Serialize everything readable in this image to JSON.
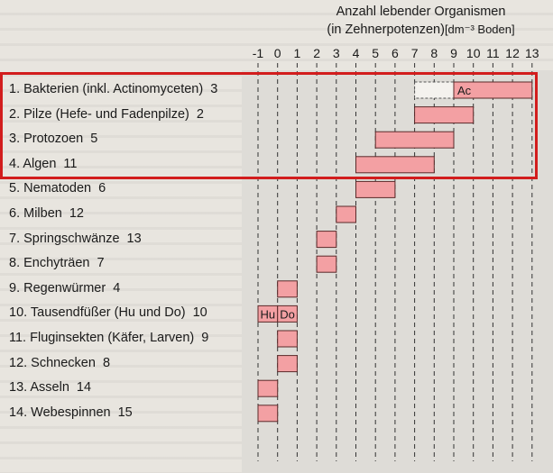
{
  "chart_data": {
    "type": "bar",
    "subtype": "floating-range-horizontal",
    "title": "Anzahl lebender Organismen",
    "subtitle": "(in Zehnerpotenzen)",
    "unit": "[dm⁻³ Boden]",
    "x_ticks": [
      "-1",
      "0",
      "1",
      "2",
      "3",
      "4",
      "5",
      "6",
      "7",
      "8",
      "9",
      "10",
      "11",
      "12",
      "13"
    ],
    "xlim": [
      -1,
      13
    ],
    "grid": "dashed vertical",
    "bar_color": "#f3a0a3",
    "highlight_color": "#d21d1d",
    "highlighted_rows": [
      1,
      2,
      3,
      4
    ],
    "rows": [
      {
        "label": "1. Bakterien (inkl. Actinomyceten)",
        "count": "3",
        "ranges": [
          {
            "from": 9.0,
            "to": 13.0,
            "label": "Ac"
          }
        ],
        "dashed": {
          "from": 7.0,
          "to": 9.0
        }
      },
      {
        "label": "2. Pilze (Hefe- und Fadenpilze)",
        "count": "2",
        "ranges": [
          {
            "from": 7.0,
            "to": 10.0
          }
        ]
      },
      {
        "label": "3. Protozoen",
        "count": "5",
        "ranges": [
          {
            "from": 5.0,
            "to": 9.0
          }
        ]
      },
      {
        "label": "4. Algen",
        "count": "11",
        "ranges": [
          {
            "from": 4.0,
            "to": 8.0
          }
        ]
      },
      {
        "label": "5. Nematoden",
        "count": "6",
        "ranges": [
          {
            "from": 4.0,
            "to": 6.0
          }
        ]
      },
      {
        "label": "6. Milben",
        "count": "12",
        "ranges": [
          {
            "from": 3.0,
            "to": 4.0
          }
        ]
      },
      {
        "label": "7. Springschwänze",
        "count": "13",
        "ranges": [
          {
            "from": 2.0,
            "to": 3.0
          }
        ]
      },
      {
        "label": "8. Enchyträen",
        "count": "7",
        "ranges": [
          {
            "from": 2.0,
            "to": 3.0
          }
        ]
      },
      {
        "label": "9. Regenwürmer",
        "count": "4",
        "ranges": [
          {
            "from": 0.0,
            "to": 1.0
          }
        ]
      },
      {
        "label": "10. Tausendfüßer (Hu und Do)",
        "count": "10",
        "ranges": [
          {
            "from": -1.0,
            "to": 0.0,
            "label": "Hu"
          },
          {
            "from": 0.0,
            "to": 1.0,
            "label": "Do"
          }
        ]
      },
      {
        "label": "11. Fluginsekten (Käfer, Larven)",
        "count": "9",
        "ranges": [
          {
            "from": 0.0,
            "to": 1.0
          }
        ]
      },
      {
        "label": "12. Schnecken",
        "count": "8",
        "ranges": [
          {
            "from": 0.0,
            "to": 1.0
          }
        ]
      },
      {
        "label": "13. Asseln",
        "count": "14",
        "ranges": [
          {
            "from": -1.0,
            "to": 0.0
          }
        ]
      },
      {
        "label": "14. Webespinnen",
        "count": "15",
        "ranges": [
          {
            "from": -1.0,
            "to": 0.0
          }
        ]
      }
    ]
  }
}
